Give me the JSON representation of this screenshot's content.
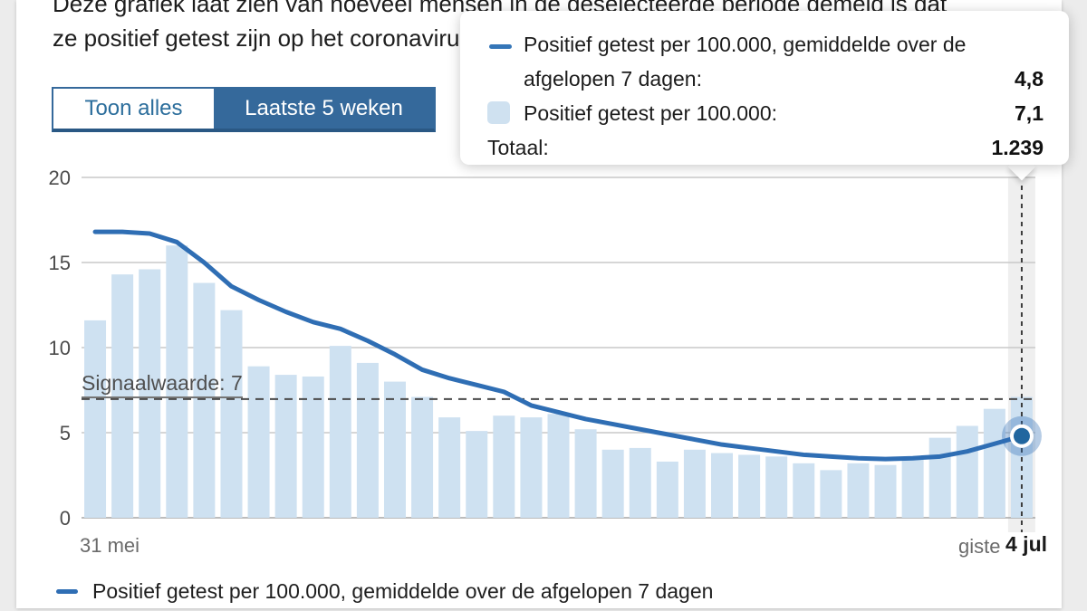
{
  "page": {
    "background": "#ececec",
    "card_background": "#ffffff"
  },
  "header": {
    "line1": "Deze grafiek laat zien van hoeveel mensen in de geselecteerde periode gemeld is dat",
    "line2": "ze positief getest zijn op het coronavirus."
  },
  "toolbar": {
    "show_all_label": "Toon alles",
    "last_5_weeks_label": "Laatste 5 weken",
    "selected": "Laatste 5 weken"
  },
  "tooltip": {
    "rows": [
      {
        "icon": "line-swatch",
        "label": "Positief getest per 100.000, gemiddelde over de",
        "label2": "afgelopen 7 dagen:",
        "value": "4,8"
      },
      {
        "icon": "bar-swatch",
        "label": "Positief getest per 100.000:",
        "value": "7,1"
      },
      {
        "icon": "none",
        "label": "Totaal:",
        "value": "1.239"
      }
    ]
  },
  "chart_data": {
    "type": "bar",
    "title": "",
    "xlabel": "",
    "ylabel": "Positief getest per 100.000",
    "ylim": [
      0,
      20
    ],
    "y_ticks": [
      20,
      15,
      10,
      5,
      0
    ],
    "x_start_label": "31 mei",
    "x_yesterday_label": "giste",
    "x_end_label": "4 jul",
    "grid": "horizontal",
    "signal": {
      "label": "Signaalwaarde: 7",
      "value": 7
    },
    "series": [
      {
        "name": "Positief getest per 100.000, gemiddelde over de afgelopen 7 dagen",
        "type": "line",
        "color": "#2f6eb4",
        "values": [
          16.8,
          16.8,
          16.7,
          16.2,
          15.0,
          13.6,
          12.8,
          12.1,
          11.5,
          11.1,
          10.4,
          9.6,
          8.7,
          8.2,
          7.8,
          7.4,
          6.6,
          6.2,
          5.8,
          5.5,
          5.2,
          4.9,
          4.6,
          4.3,
          4.1,
          3.9,
          3.7,
          3.6,
          3.5,
          3.45,
          3.5,
          3.6,
          3.9,
          4.35,
          4.8
        ]
      },
      {
        "name": "Positief getest per 100.000",
        "type": "bar",
        "color": "#cee1f1",
        "values": [
          11.6,
          14.3,
          14.6,
          16.0,
          13.8,
          12.2,
          8.9,
          8.4,
          8.3,
          10.1,
          9.1,
          8.0,
          7.1,
          5.9,
          5.1,
          6.0,
          5.9,
          6.1,
          5.2,
          4.0,
          4.1,
          3.3,
          4.0,
          3.8,
          3.7,
          3.6,
          3.2,
          2.8,
          3.2,
          3.1,
          3.6,
          4.7,
          5.4,
          6.4,
          7.1
        ]
      }
    ],
    "highlight": {
      "index": 34,
      "bar_value": 7.1,
      "line_value": 4.8
    }
  },
  "legend": {
    "label": "Positief getest per 100.000, gemiddelde over de afgelopen 7 dagen",
    "color": "#2f6eb4"
  },
  "colors": {
    "accent_blue": "#35699b",
    "line_blue": "#2f6eb4",
    "bar_blue": "#cee1f1",
    "marker_dot": "#21669f",
    "grid": "#c9c9c9"
  }
}
